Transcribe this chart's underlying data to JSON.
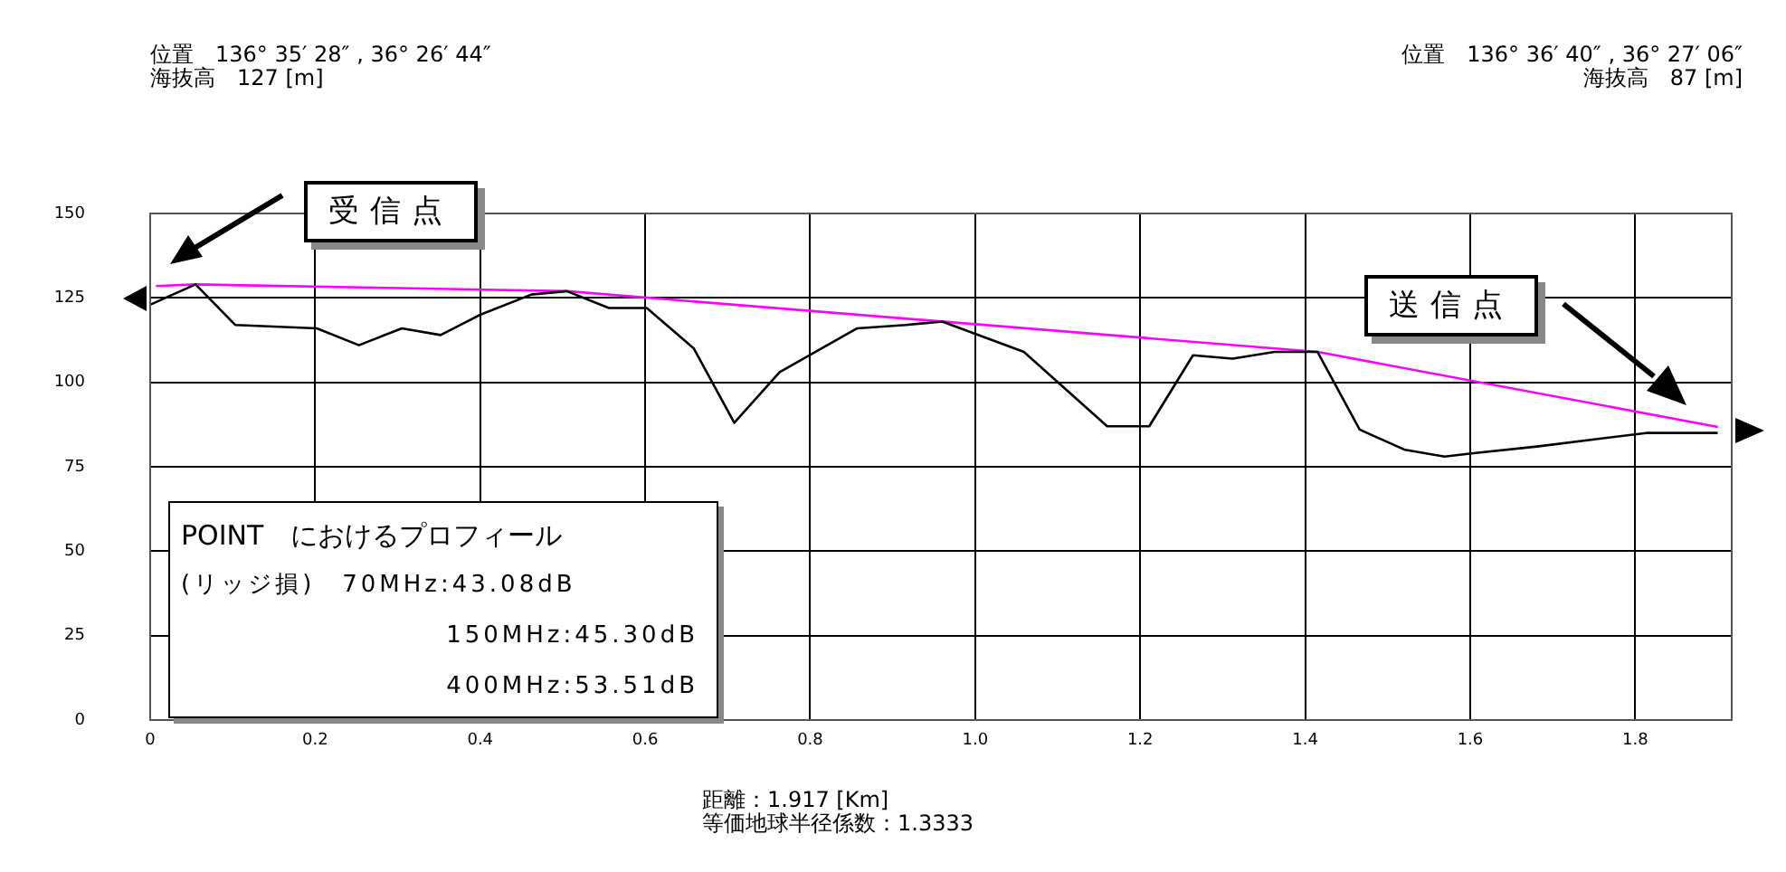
{
  "chart_data": {
    "type": "line",
    "annotations": [
      "位置　136° 35′ 28″ , 36° 26′ 44″",
      "海抜高　127 [m]",
      "位置　136° 36′ 40″ , 36° 27′ 06″",
      "海抜高　87 [m]",
      "POINT　におけるプロフィール",
      "(リッジ損)　70MHz:43.08dB",
      "150MHz:45.30dB",
      "400MHz:53.51dB",
      "距離：1.917 [Km]",
      "等価地球半径係数：1.3333",
      "受信点",
      "送信点"
    ],
    "series": [
      {
        "color": "#000000",
        "x": [
          0,
          0.055,
          0.103,
          0.202,
          0.253,
          0.305,
          0.352,
          0.4,
          0.462,
          0.505,
          0.556,
          0.602,
          0.659,
          0.708,
          0.763,
          0.857,
          0.916,
          0.96,
          1.059,
          1.16,
          1.211,
          1.264,
          1.312,
          1.363,
          1.415,
          1.466,
          1.521,
          1.569,
          1.604,
          1.681,
          1.813,
          1.9
        ],
        "values": [
          123,
          129,
          117,
          116,
          111,
          116,
          114,
          120,
          126,
          127,
          122,
          122,
          110,
          88,
          103,
          116,
          117,
          118,
          109,
          87,
          87,
          108,
          107,
          109,
          109,
          86,
          80,
          78,
          79,
          81,
          85,
          85
        ]
      },
      {
        "color": "#ff00ff",
        "x": [
          0.007,
          0.055,
          0.505,
          1.415,
          1.9
        ],
        "values": [
          128.5,
          129,
          127,
          109,
          86.8
        ]
      }
    ],
    "xlim": [
      0,
      1.917
    ],
    "xticks": [
      {
        "value": 0,
        "label": "0"
      },
      0.2,
      0.4,
      0.6,
      0.8,
      {
        "value": 1,
        "label": "1.0"
      },
      1.2,
      1.4,
      1.6,
      1.8
    ],
    "ylim": [
      0,
      150
    ],
    "yticks": [
      0,
      25,
      50,
      75,
      100,
      125,
      150
    ],
    "grid": true,
    "marker": "none",
    "line_style": "solid"
  }
}
